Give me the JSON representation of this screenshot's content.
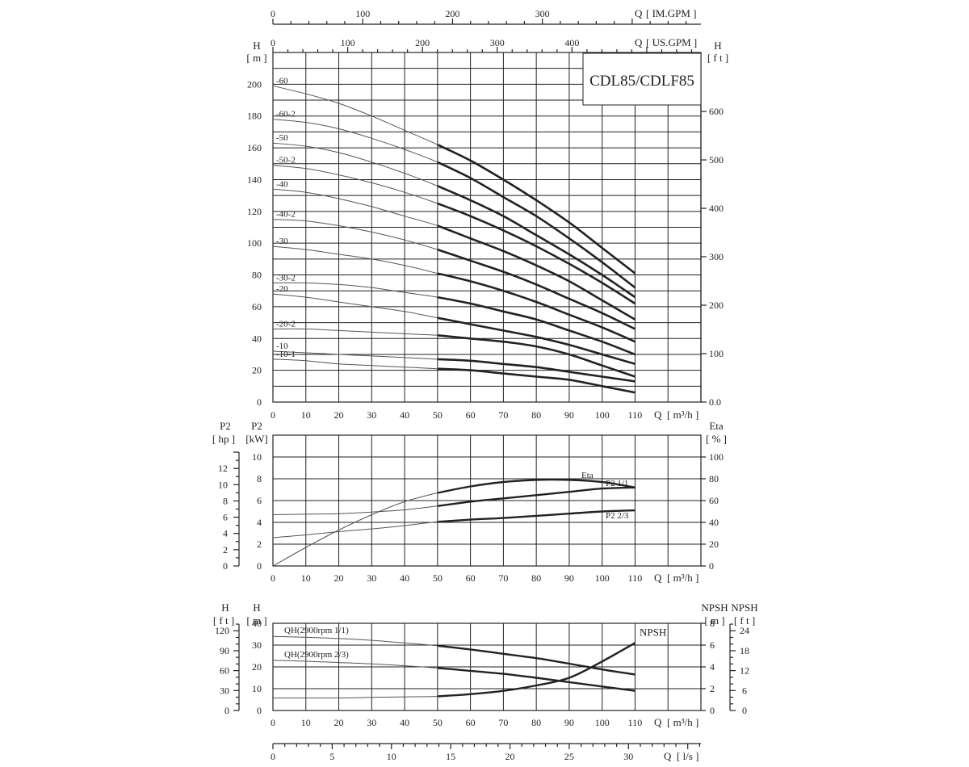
{
  "model_title": "CDL85/CDLF85",
  "chart_data": [
    {
      "type": "line",
      "title": "",
      "x": {
        "label": "Q",
        "unit": "[ m³/h ]",
        "ticks": [
          0,
          10,
          20,
          30,
          40,
          50,
          60,
          70,
          80,
          90,
          100,
          110
        ]
      },
      "top_axes": [
        {
          "label": "Q",
          "unit": "[ IM.GPM ]",
          "ticks": [
            0,
            100,
            200,
            300
          ]
        },
        {
          "label": "Q",
          "unit": "[ US.GPM ]",
          "ticks": [
            0,
            100,
            200,
            300,
            400
          ]
        }
      ],
      "y_left": {
        "label": "H",
        "unit": "[ m ]",
        "ticks": [
          0,
          20,
          40,
          60,
          80,
          100,
          120,
          140,
          160,
          180,
          200
        ],
        "ylim": [
          0,
          220
        ]
      },
      "y_right": {
        "label": "H",
        "unit": "[ f t ]",
        "ticks": [
          "0.0",
          "100",
          "200",
          "300",
          "400",
          "500",
          "600"
        ]
      },
      "series": [
        {
          "name": "-60",
          "x": [
            0,
            10,
            20,
            30,
            40,
            50,
            60,
            70,
            80,
            90,
            100,
            110
          ],
          "y": [
            199,
            194,
            188,
            180,
            171,
            162,
            152,
            140,
            127,
            113,
            97,
            81
          ]
        },
        {
          "name": "-60-2",
          "x": [
            0,
            10,
            20,
            30,
            40,
            50,
            60,
            70,
            80,
            90,
            100,
            110
          ],
          "y": [
            178,
            176,
            172,
            166,
            159,
            151,
            141,
            129,
            117,
            103,
            88,
            72
          ]
        },
        {
          "name": "-50",
          "x": [
            0,
            10,
            20,
            30,
            40,
            50,
            60,
            70,
            80,
            90,
            100,
            110
          ],
          "y": [
            163,
            161,
            157,
            151,
            144,
            136,
            127,
            117,
            105,
            93,
            80,
            66
          ]
        },
        {
          "name": "-50-2",
          "x": [
            0,
            10,
            20,
            30,
            40,
            50,
            60,
            70,
            80,
            90,
            100,
            110
          ],
          "y": [
            149,
            147,
            143,
            138,
            132,
            125,
            117,
            108,
            98,
            87,
            75,
            62
          ]
        },
        {
          "name": "-40",
          "x": [
            0,
            10,
            20,
            30,
            40,
            50,
            60,
            70,
            80,
            90,
            100,
            110
          ],
          "y": [
            134,
            132,
            128,
            123,
            117,
            111,
            103,
            95,
            86,
            76,
            64,
            52
          ]
        },
        {
          "name": "-40-2",
          "x": [
            0,
            10,
            20,
            30,
            40,
            50,
            60,
            70,
            80,
            90,
            100,
            110
          ],
          "y": [
            115,
            114,
            111,
            107,
            102,
            96,
            89,
            82,
            74,
            65,
            56,
            46
          ]
        },
        {
          "name": "-30",
          "x": [
            0,
            10,
            20,
            30,
            40,
            50,
            60,
            70,
            80,
            90,
            100,
            110
          ],
          "y": [
            98,
            96,
            93,
            90,
            86,
            81,
            76,
            70,
            63,
            55,
            47,
            38
          ]
        },
        {
          "name": "-30-2",
          "x": [
            0,
            10,
            20,
            30,
            40,
            50,
            60,
            70,
            80,
            90,
            100,
            110
          ],
          "y": [
            75,
            75,
            74,
            72,
            69,
            66,
            62,
            57,
            52,
            45,
            38,
            30
          ]
        },
        {
          "name": "-20",
          "x": [
            0,
            10,
            20,
            30,
            40,
            50,
            60,
            70,
            80,
            90,
            100,
            110
          ],
          "y": [
            68,
            66,
            63,
            60,
            57,
            53,
            49,
            45,
            41,
            36,
            30,
            24
          ]
        },
        {
          "name": "-20-2",
          "x": [
            0,
            10,
            20,
            30,
            40,
            50,
            60,
            70,
            80,
            90,
            100,
            110
          ],
          "y": [
            46,
            46,
            45,
            44,
            43,
            42,
            40,
            38,
            35,
            30,
            23,
            16
          ]
        },
        {
          "name": "-10",
          "x": [
            0,
            10,
            20,
            30,
            40,
            50,
            60,
            70,
            80,
            90,
            100,
            110
          ],
          "y": [
            32,
            31,
            30,
            29,
            28,
            27,
            26,
            24,
            22,
            19,
            16,
            13
          ]
        },
        {
          "name": "-10-1",
          "x": [
            0,
            10,
            20,
            30,
            40,
            50,
            60,
            70,
            80,
            90,
            100,
            110
          ],
          "y": [
            27,
            26,
            24,
            23,
            22,
            21,
            20,
            18,
            16,
            14,
            10,
            6
          ]
        }
      ]
    },
    {
      "type": "line",
      "title": "",
      "x": {
        "label": "Q",
        "unit": "[ m³/h ]",
        "ticks": [
          0,
          10,
          20,
          30,
          40,
          50,
          60,
          70,
          80,
          90,
          100,
          110
        ]
      },
      "y_left_outer": {
        "label": "P2",
        "unit": "[ hp ]",
        "ticks": [
          0,
          2,
          4,
          6,
          8,
          10,
          12
        ]
      },
      "y_left": {
        "label": "P2",
        "unit": "[kW]",
        "ticks": [
          0,
          2,
          4,
          6,
          8,
          10
        ],
        "ylim": [
          0,
          12
        ]
      },
      "y_right": {
        "label": "Eta",
        "unit": "[ % ]",
        "ticks": [
          0,
          20,
          40,
          60,
          80,
          100
        ]
      },
      "series": [
        {
          "name": "Eta",
          "axis": "eta",
          "x": [
            0,
            10,
            20,
            30,
            40,
            50,
            60,
            70,
            80,
            90,
            100,
            110
          ],
          "y": [
            0,
            17,
            33,
            47,
            59,
            67,
            73,
            77,
            79,
            79,
            77,
            72
          ]
        },
        {
          "name": "P2  1/1",
          "axis": "kw",
          "x": [
            0,
            10,
            20,
            30,
            40,
            50,
            60,
            70,
            80,
            90,
            100,
            110
          ],
          "y": [
            4.7,
            4.75,
            4.8,
            4.95,
            5.15,
            5.5,
            5.9,
            6.2,
            6.5,
            6.8,
            7.1,
            7.2
          ]
        },
        {
          "name": "P2  2/3",
          "axis": "kw",
          "x": [
            0,
            10,
            20,
            30,
            40,
            50,
            60,
            70,
            80,
            90,
            100,
            110
          ],
          "y": [
            2.6,
            2.85,
            3.15,
            3.4,
            3.7,
            4.05,
            4.25,
            4.4,
            4.6,
            4.8,
            5.0,
            5.1
          ]
        }
      ]
    },
    {
      "type": "line",
      "title": "",
      "x": {
        "label": "Q",
        "unit": "[ m³/h ]",
        "ticks": [
          0,
          10,
          20,
          30,
          40,
          50,
          60,
          70,
          80,
          90,
          100,
          110
        ]
      },
      "x_bottom": {
        "label": "Q",
        "unit": "[ l/s ]",
        "ticks": [
          0,
          5,
          10,
          15,
          20,
          25,
          30
        ]
      },
      "y_left_outer": {
        "label": "H",
        "unit": "[ f t ]",
        "ticks": [
          0,
          30,
          60,
          90,
          120
        ]
      },
      "y_left": {
        "label": "H",
        "unit": "[ m ]",
        "ticks": [
          0,
          10,
          20,
          30,
          40
        ],
        "ylim": [
          0,
          40
        ]
      },
      "y_right": {
        "label": "NPSH",
        "unit": "[ m ]",
        "ticks": [
          0,
          2,
          4,
          6,
          8
        ]
      },
      "y_right_outer": {
        "label": "NPSH",
        "unit": "[ f t ]",
        "ticks": [
          0,
          6,
          12,
          18,
          24
        ]
      },
      "series": [
        {
          "name": "QH(2900rpm 1/1)",
          "axis": "h",
          "x": [
            0,
            10,
            20,
            30,
            40,
            50,
            60,
            70,
            80,
            90,
            100,
            110
          ],
          "y": [
            34,
            33.6,
            33,
            32.2,
            31,
            29.7,
            28,
            26,
            24,
            21.5,
            18.8,
            16.5
          ]
        },
        {
          "name": "QH(2900rpm 2/3)",
          "axis": "h",
          "x": [
            0,
            10,
            20,
            30,
            40,
            50,
            60,
            70,
            80,
            90,
            100,
            110
          ],
          "y": [
            23,
            22.6,
            22,
            21.4,
            20.5,
            19.5,
            18.2,
            16.8,
            15,
            13,
            11,
            9
          ]
        },
        {
          "name": "NPSH",
          "axis": "npsh",
          "x": [
            0,
            10,
            20,
            30,
            40,
            50,
            60,
            70,
            80,
            90,
            100,
            110
          ],
          "y": [
            1.15,
            1.15,
            1.15,
            1.2,
            1.25,
            1.3,
            1.5,
            1.8,
            2.3,
            3.0,
            4.5,
            6.2
          ]
        }
      ]
    }
  ]
}
